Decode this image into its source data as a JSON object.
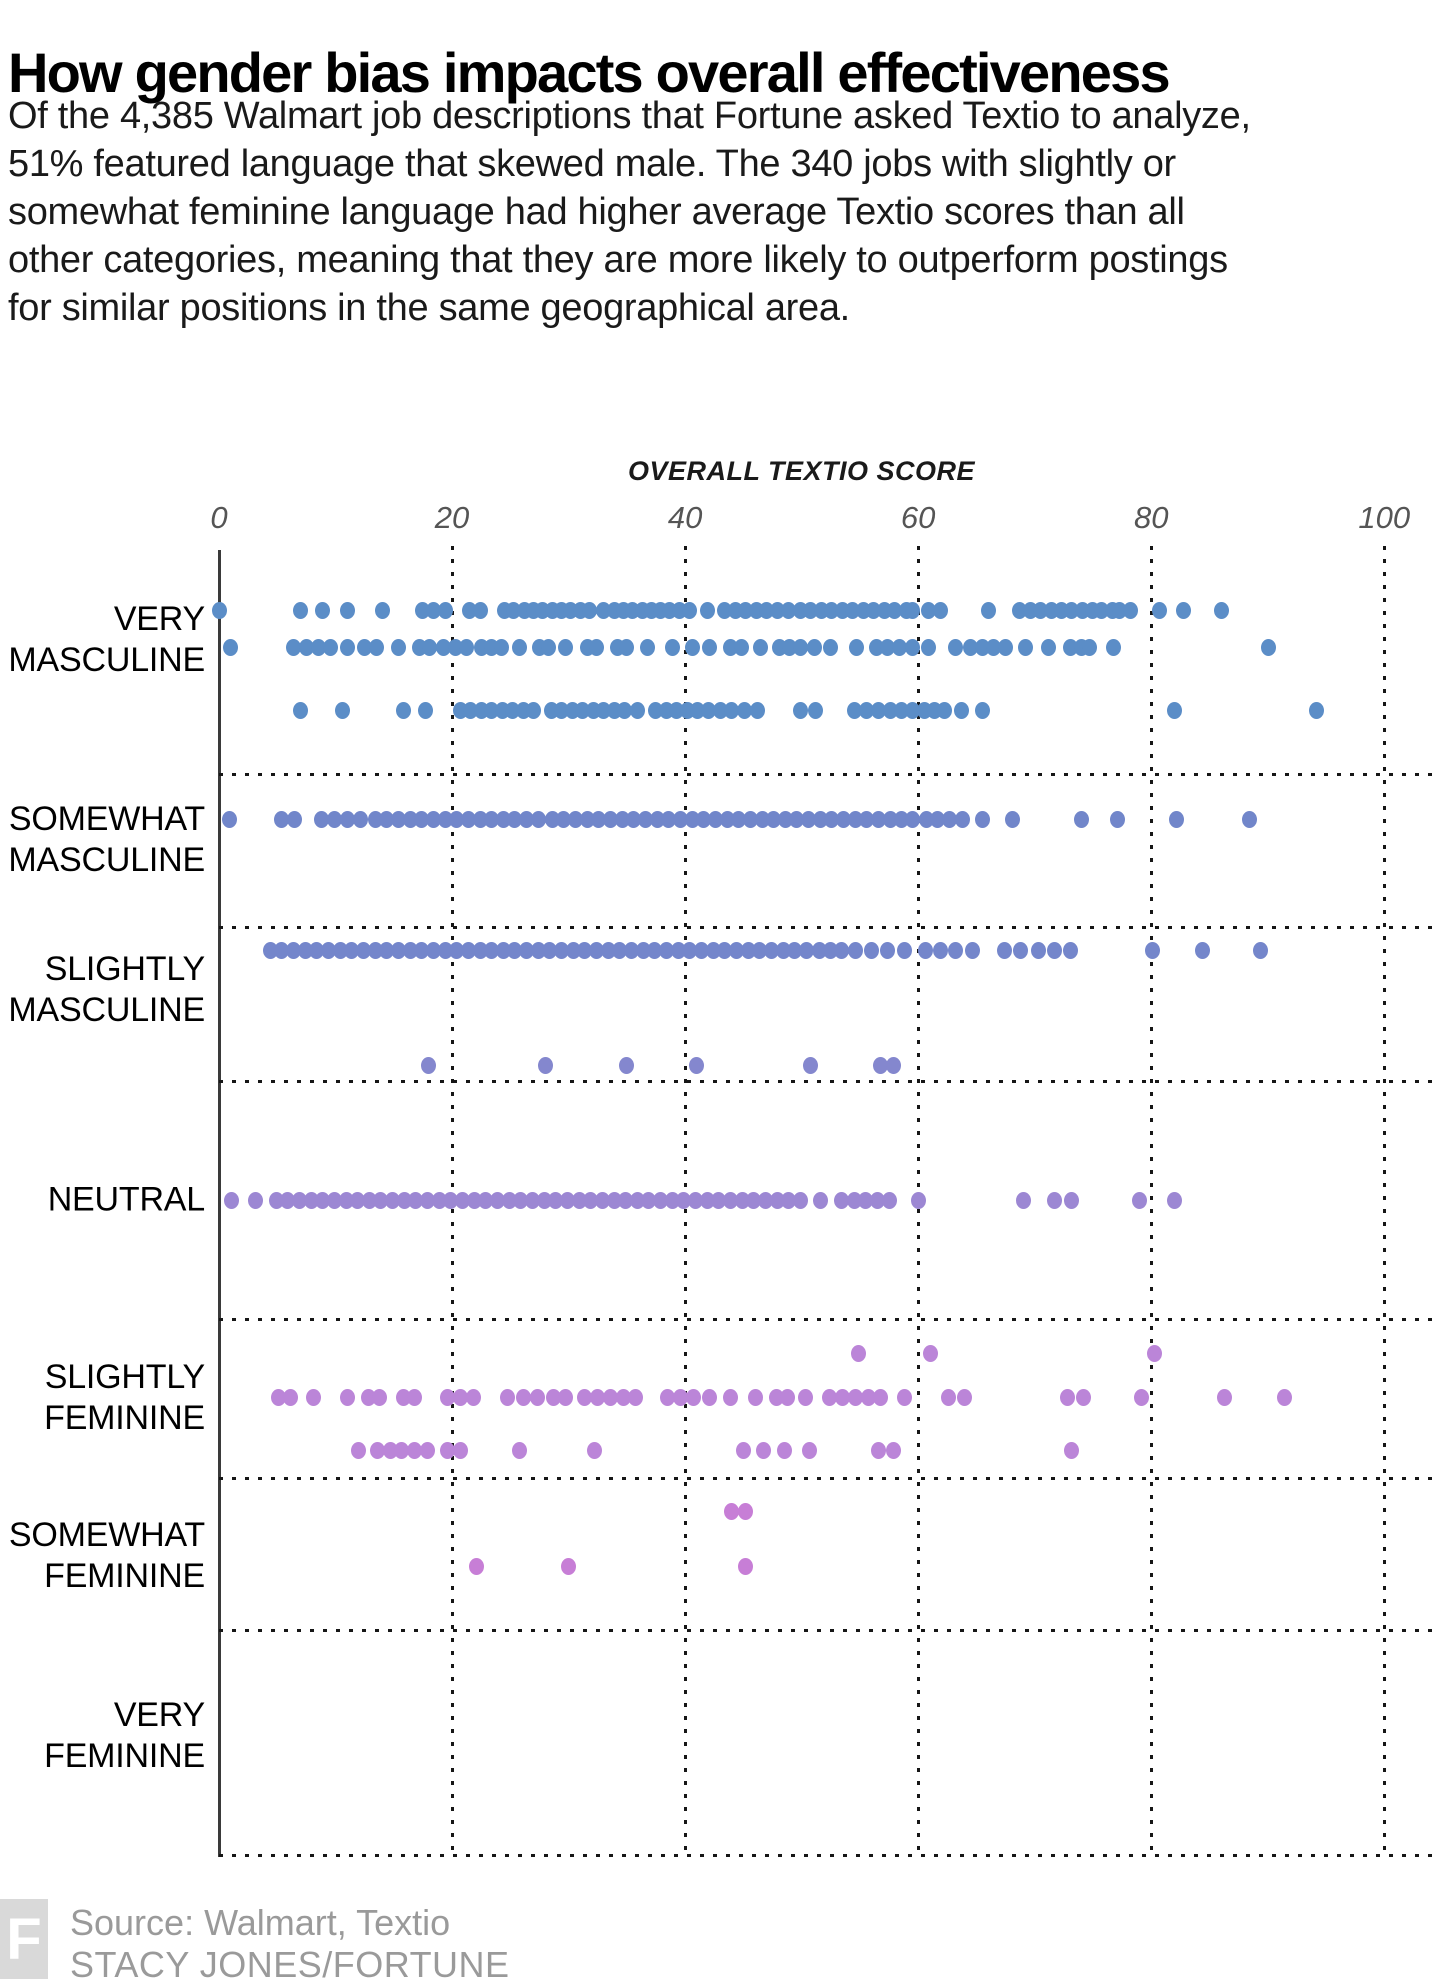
{
  "header": {
    "title": "How gender bias impacts overall effectiveness",
    "subtitle_lines": [
      "Of the 4,385 Walmart job descriptions that Fortune asked Textio to analyze,",
      "51% featured language that skewed male. The 340 jobs with slightly or",
      "somewhat feminine language had higher average Textio scores than all",
      "other categories, meaning that they are more likely to outperform postings",
      "for similar positions in the same geographical area."
    ]
  },
  "footer": {
    "logo_letter": "F",
    "source": "Source: Walmart, Textio",
    "credit": "STACY JONES/FORTUNE"
  },
  "chart_data": {
    "type": "scatter",
    "title": "OVERALL TEXTIO SCORE",
    "xlabel": "OVERALL TEXTIO SCORE",
    "ylabel": "",
    "xlim": [
      0,
      100
    ],
    "x_ticks": [
      0,
      20,
      40,
      60,
      80,
      100
    ],
    "grid": "dotted",
    "colors": {
      "very_masculine": "#5b8dc7",
      "somewhat_masculine": "#7186ca",
      "slightly_masculine": "#7486cb",
      "neutral": "#9c87d3",
      "slightly_feminine": "#bb85d8",
      "somewhat_feminine": "#c77ed6"
    },
    "categories": [
      {
        "id": "very-masculine",
        "lines": [
          "VERY",
          "MASCULINE"
        ]
      },
      {
        "id": "somewhat-masculine",
        "lines": [
          "SOMEWHAT",
          "MASCULINE"
        ]
      },
      {
        "id": "slightly-masculine",
        "lines": [
          "SLIGHTLY",
          "MASCULINE"
        ]
      },
      {
        "id": "neutral",
        "lines": [
          "NEUTRAL"
        ]
      },
      {
        "id": "slightly-feminine",
        "lines": [
          "SLIGHTLY",
          "FEMININE"
        ]
      },
      {
        "id": "somewhat-feminine",
        "lines": [
          "SOMEWHAT",
          "FEMININE"
        ]
      },
      {
        "id": "very-feminine",
        "lines": [
          "VERY",
          "FEMININE"
        ]
      }
    ],
    "rows": [
      {
        "id": "vm-1",
        "category": "very_masculine",
        "color": "#5b8dc7",
        "values": [
          0,
          7,
          8.9,
          11,
          14,
          17.5,
          18.4,
          19.4,
          21.5,
          22.4,
          24.5,
          25.3,
          26.2,
          27,
          27.8,
          28.6,
          29.4,
          30.2,
          31,
          31.8,
          33,
          33.9,
          34.7,
          35.5,
          36.3,
          37.1,
          37.9,
          38.7,
          39.5,
          40.4,
          41.9,
          43.4,
          44.3,
          45.2,
          46.1,
          47,
          47.9,
          48.9,
          49.9,
          50.8,
          51.7,
          52.6,
          53.5,
          54.4,
          55.3,
          56.2,
          57.1,
          58,
          59,
          59.5,
          60.9,
          61.9,
          66,
          68.7,
          69.6,
          70.5,
          71.4,
          72.3,
          73.2,
          74.1,
          75,
          75.7,
          76.7,
          77.3,
          78.2,
          80.7,
          82.8,
          86
        ]
      },
      {
        "id": "vm-2",
        "category": "very_masculine",
        "color": "#5b8dc7",
        "values": [
          1,
          6.4,
          7.5,
          8.5,
          9.6,
          11,
          12.5,
          13.5,
          15.4,
          17.2,
          18.1,
          19.3,
          20.3,
          21.2,
          22.5,
          23.4,
          24.2,
          25.8,
          27.5,
          28.3,
          29.7,
          31.6,
          32.4,
          34.2,
          35,
          36.8,
          38.9,
          40.6,
          42.1,
          43.9,
          44.8,
          46.5,
          48.1,
          49,
          49.9,
          51.1,
          52.5,
          54.7,
          56.4,
          57.4,
          58.4,
          59.5,
          60.9,
          63.2,
          64.5,
          65.5,
          66.5,
          67.5,
          69.2,
          71.2,
          73.1,
          74,
          74.7,
          76.8,
          90.1
        ]
      },
      {
        "id": "vm-3",
        "category": "very_masculine",
        "color": "#5b8dc7",
        "values": [
          7,
          10.6,
          15.8,
          17.7,
          20.7,
          21.6,
          22.5,
          23.4,
          24.3,
          25.2,
          26.1,
          27,
          28.5,
          29.4,
          30.3,
          31.2,
          32.1,
          33,
          33.9,
          34.8,
          35.9,
          37.5,
          38.4,
          39.3,
          40.2,
          41.1,
          42,
          43,
          44,
          45.1,
          46.2,
          49.9,
          51.2,
          54.5,
          55.6,
          56.6,
          57.6,
          58.6,
          59.5,
          60.5,
          61.4,
          62.3,
          63.7,
          65.5,
          82,
          94.2
        ]
      },
      {
        "id": "sm-1",
        "category": "somewhat_masculine",
        "color": "#7186ca",
        "values": [
          0.9,
          5.4,
          6.5,
          8.8,
          9.9,
          11,
          12.1,
          13.4,
          14.4,
          15.4,
          16.4,
          17.4,
          18.4,
          19.4,
          20.4,
          21.4,
          22.4,
          23.4,
          24.4,
          25.4,
          26.4,
          27.4,
          28.6,
          29.6,
          30.6,
          31.6,
          32.6,
          33.6,
          34.6,
          35.6,
          36.6,
          37.6,
          38.6,
          39.6,
          40.6,
          41.6,
          42.6,
          43.6,
          44.6,
          45.6,
          46.6,
          47.6,
          48.6,
          49.6,
          50.6,
          51.6,
          52.6,
          53.6,
          54.6,
          55.6,
          56.6,
          57.6,
          58.6,
          59.5,
          60.7,
          61.7,
          62.7,
          63.8,
          65.5,
          68.1,
          74,
          77.1,
          82.2,
          88.4
        ]
      },
      {
        "id": "slm-1",
        "category": "slightly_masculine",
        "color": "#7486cb",
        "values": [
          4.4,
          5.4,
          6.4,
          7.4,
          8.4,
          9.4,
          10.4,
          11.4,
          12.4,
          13.4,
          14.4,
          15.4,
          16.4,
          17.4,
          18.4,
          19.4,
          20.4,
          21.4,
          22.4,
          23.4,
          24.4,
          25.4,
          26.4,
          27.4,
          28.4,
          29.4,
          30.4,
          31.4,
          32.4,
          33.4,
          34.4,
          35.4,
          36.4,
          37.4,
          38.4,
          39.4,
          40.4,
          41.4,
          42.4,
          43.4,
          44.4,
          45.4,
          46.4,
          47.4,
          48.4,
          49.4,
          50.4,
          51.5,
          52.5,
          53.4,
          54.6,
          56,
          57.4,
          58.8,
          60.6,
          61.9,
          63.2,
          64.7,
          67.4,
          68.8,
          70.3,
          71.7,
          73.1,
          80.1,
          84.4,
          89.4
        ]
      },
      {
        "id": "slm-2",
        "category": "slightly_masculine",
        "color": "#8487ce",
        "values": [
          18,
          28,
          35,
          41,
          50.8,
          56.8,
          57.9
        ]
      },
      {
        "id": "n-1",
        "category": "neutral",
        "color": "#9c87d3",
        "values": [
          1.1,
          3.1,
          4.9,
          5.9,
          6.9,
          7.9,
          8.9,
          9.9,
          10.9,
          11.9,
          12.9,
          13.9,
          14.9,
          15.9,
          16.9,
          17.9,
          18.9,
          19.9,
          20.9,
          21.9,
          22.9,
          23.9,
          24.9,
          25.9,
          26.9,
          27.9,
          28.9,
          29.9,
          30.9,
          31.9,
          32.9,
          33.9,
          34.9,
          35.9,
          36.9,
          37.9,
          38.9,
          39.9,
          40.9,
          41.9,
          42.9,
          43.9,
          44.9,
          45.9,
          46.9,
          47.9,
          48.9,
          49.9,
          51.6,
          53.4,
          54.5,
          55.5,
          56.5,
          57.5,
          60,
          69,
          71.7,
          73.2,
          79,
          82
        ]
      },
      {
        "id": "sf-0",
        "category": "slightly_feminine",
        "color": "#bb85d8",
        "values": [
          54.9,
          61.1,
          80.3
        ]
      },
      {
        "id": "sf-1",
        "category": "slightly_feminine",
        "color": "#bb85d8",
        "values": [
          5.1,
          6.1,
          8.1,
          11,
          12.8,
          13.8,
          15.8,
          16.8,
          19.6,
          20.7,
          21.8,
          24.8,
          26.1,
          27.3,
          28.7,
          29.7,
          31.4,
          32.5,
          33.6,
          34.7,
          35.7,
          38.5,
          39.6,
          40.7,
          42.1,
          43.9,
          46,
          47.8,
          48.8,
          50.3,
          52.4,
          53.5,
          54.6,
          55.7,
          56.8,
          58.8,
          62.6,
          64,
          72.8,
          74.2,
          79.2,
          86.3,
          91.4
        ]
      },
      {
        "id": "sf-2",
        "category": "slightly_feminine",
        "color": "#bb85d8",
        "values": [
          12,
          13.6,
          14.7,
          15.7,
          16.8,
          17.9,
          19.6,
          20.7,
          25.8,
          32.2,
          45,
          46.7,
          48.5,
          50.7,
          56.6,
          57.9,
          73.2
        ]
      },
      {
        "id": "somf-1",
        "category": "somewhat_feminine",
        "color": "#c77ed6",
        "values": [
          44,
          45.2
        ]
      },
      {
        "id": "somf-2",
        "category": "somewhat_feminine",
        "color": "#c77ed6",
        "values": [
          22.1,
          30,
          45.2
        ]
      }
    ]
  }
}
